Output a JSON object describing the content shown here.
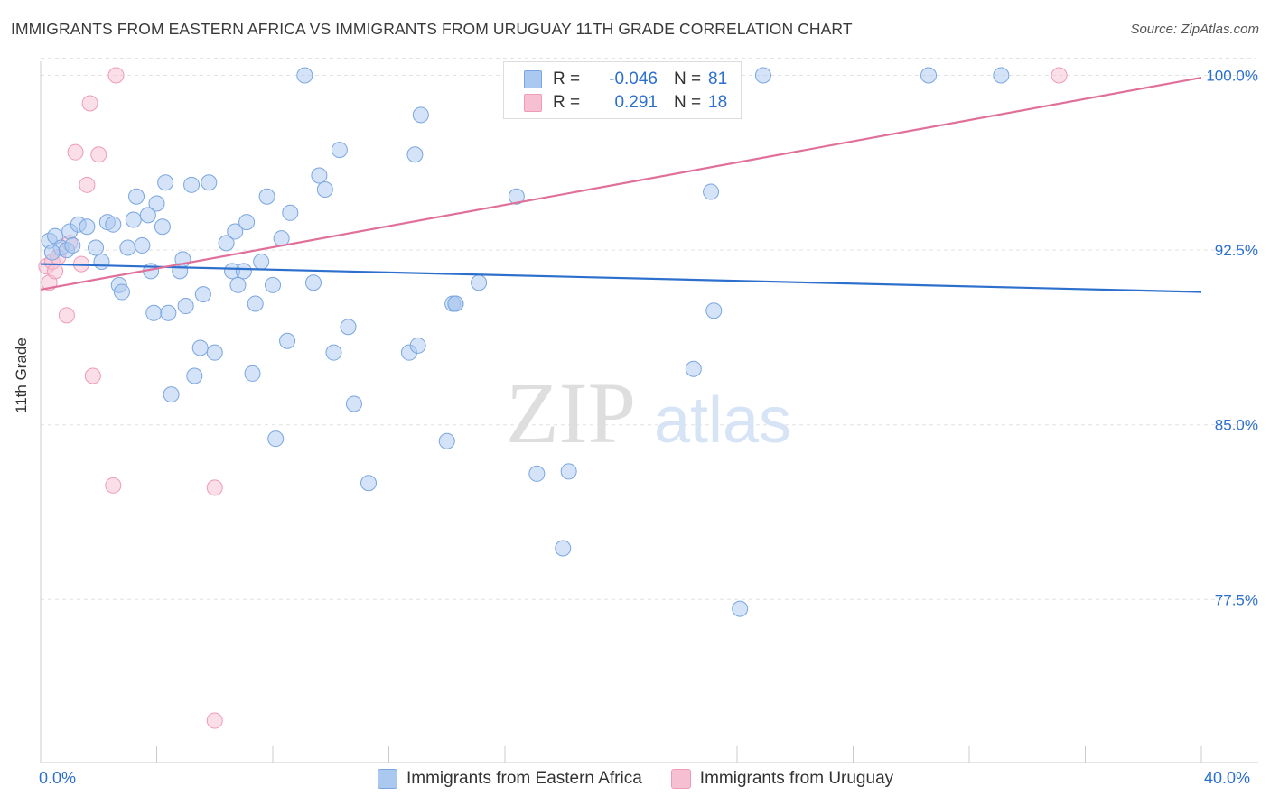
{
  "title": "IMMIGRANTS FROM EASTERN AFRICA VS IMMIGRANTS FROM URUGUAY 11TH GRADE CORRELATION CHART",
  "source": "Source: ZipAtlas.com",
  "watermark": {
    "zip": "ZIP",
    "atlas": "atlas"
  },
  "legend": {
    "rows": [
      {
        "r_label": "R =",
        "r_value": "-0.046",
        "n_label": "N =",
        "n_value": "81"
      },
      {
        "r_label": "R =",
        "r_value": "0.291",
        "n_label": "N =",
        "n_value": "18"
      }
    ]
  },
  "bottom_legend": {
    "series1": "Immigrants from Eastern Africa",
    "series2": "Immigrants from Uruguay"
  },
  "colors": {
    "blue_fill": "#aac8f0",
    "blue_stroke": "#7aa6e0",
    "blue_line": "#2c6fcd",
    "pink_fill": "#f6c0d2",
    "pink_stroke": "#ef9ab8",
    "pink_line": "#e0709a",
    "tick_text": "#2c6fcd",
    "grid": "#e2e2e2"
  },
  "chart_data": {
    "type": "scatter",
    "title": "IMMIGRANTS FROM EASTERN AFRICA VS IMMIGRANTS FROM URUGUAY 11TH GRADE CORRELATION CHART",
    "xlabel": "",
    "ylabel": "11th Grade",
    "xlim": [
      0,
      40
    ],
    "ylim": [
      70.5,
      100.6
    ],
    "x_tick_labels": [
      "0.0%",
      "40.0%"
    ],
    "y_ticks": [
      77.5,
      85.0,
      92.5,
      100.0
    ],
    "y_tick_labels": [
      "77.5%",
      "85.0%",
      "92.5%",
      "100.0%"
    ],
    "grid": true,
    "legend_placement": "top-center",
    "series": [
      {
        "name": "Immigrants from Eastern Africa",
        "color": "#aac8f0",
        "trend": {
          "x": [
            0,
            40
          ],
          "y": [
            91.9,
            90.7
          ]
        },
        "points": [
          [
            0.3,
            92.9
          ],
          [
            0.5,
            93.1
          ],
          [
            0.7,
            92.6
          ],
          [
            1.0,
            93.3
          ],
          [
            1.3,
            93.6
          ],
          [
            1.6,
            93.5
          ],
          [
            1.9,
            92.6
          ],
          [
            2.1,
            92.0
          ],
          [
            2.3,
            93.7
          ],
          [
            2.5,
            93.6
          ],
          [
            2.7,
            91.0
          ],
          [
            2.8,
            90.7
          ],
          [
            3.0,
            92.6
          ],
          [
            3.2,
            93.8
          ],
          [
            3.3,
            94.8
          ],
          [
            3.5,
            92.7
          ],
          [
            3.8,
            91.6
          ],
          [
            3.9,
            89.8
          ],
          [
            4.0,
            94.5
          ],
          [
            4.2,
            93.5
          ],
          [
            4.3,
            95.4
          ],
          [
            4.4,
            89.8
          ],
          [
            4.5,
            86.3
          ],
          [
            4.8,
            91.6
          ],
          [
            4.9,
            92.1
          ],
          [
            5.0,
            90.1
          ],
          [
            5.2,
            95.3
          ],
          [
            5.3,
            87.1
          ],
          [
            5.5,
            88.3
          ],
          [
            5.6,
            90.6
          ],
          [
            5.8,
            95.4
          ],
          [
            6.0,
            88.1
          ],
          [
            6.4,
            92.8
          ],
          [
            6.6,
            91.6
          ],
          [
            6.7,
            93.3
          ],
          [
            6.8,
            91.0
          ],
          [
            7.0,
            91.6
          ],
          [
            7.1,
            93.7
          ],
          [
            7.3,
            87.2
          ],
          [
            7.4,
            90.2
          ],
          [
            7.6,
            92.0
          ],
          [
            7.8,
            94.8
          ],
          [
            8.0,
            91.0
          ],
          [
            8.1,
            84.4
          ],
          [
            8.3,
            93.0
          ],
          [
            8.5,
            88.6
          ],
          [
            8.6,
            94.1
          ],
          [
            9.1,
            100.0
          ],
          [
            9.4,
            91.1
          ],
          [
            9.6,
            95.7
          ],
          [
            9.8,
            95.1
          ],
          [
            10.1,
            88.1
          ],
          [
            10.3,
            96.8
          ],
          [
            10.6,
            89.2
          ],
          [
            10.8,
            85.9
          ],
          [
            11.3,
            82.5
          ],
          [
            12.7,
            88.1
          ],
          [
            12.9,
            96.6
          ],
          [
            13.0,
            88.4
          ],
          [
            13.1,
            98.3
          ],
          [
            14.0,
            84.3
          ],
          [
            14.2,
            90.2
          ],
          [
            14.3,
            90.2
          ],
          [
            14.3,
            90.2
          ],
          [
            15.1,
            91.1
          ],
          [
            16.4,
            94.8
          ],
          [
            17.1,
            82.9
          ],
          [
            17.4,
            100.0
          ],
          [
            18.0,
            79.7
          ],
          [
            18.2,
            83.0
          ],
          [
            22.5,
            87.4
          ],
          [
            23.1,
            95.0
          ],
          [
            23.2,
            89.9
          ],
          [
            24.1,
            77.1
          ],
          [
            24.9,
            100.0
          ],
          [
            30.6,
            100.0
          ],
          [
            33.1,
            100.0
          ],
          [
            0.4,
            92.4
          ],
          [
            0.9,
            92.5
          ],
          [
            1.1,
            92.7
          ],
          [
            3.7,
            94.0
          ]
        ]
      },
      {
        "name": "Immigrants from Uruguay",
        "color": "#f6c0d2",
        "trend": {
          "x": [
            0,
            40
          ],
          "y": [
            90.8,
            99.9
          ]
        },
        "points": [
          [
            0.2,
            91.8
          ],
          [
            0.3,
            91.1
          ],
          [
            0.4,
            92.0
          ],
          [
            0.5,
            91.6
          ],
          [
            0.6,
            92.2
          ],
          [
            0.9,
            89.7
          ],
          [
            1.0,
            92.8
          ],
          [
            1.2,
            96.7
          ],
          [
            1.4,
            91.9
          ],
          [
            1.6,
            95.3
          ],
          [
            1.7,
            98.8
          ],
          [
            1.8,
            87.1
          ],
          [
            2.0,
            96.6
          ],
          [
            2.5,
            82.4
          ],
          [
            2.6,
            100.0
          ],
          [
            6.0,
            82.3
          ],
          [
            6.0,
            72.3
          ],
          [
            35.1,
            100.0
          ]
        ]
      }
    ]
  }
}
